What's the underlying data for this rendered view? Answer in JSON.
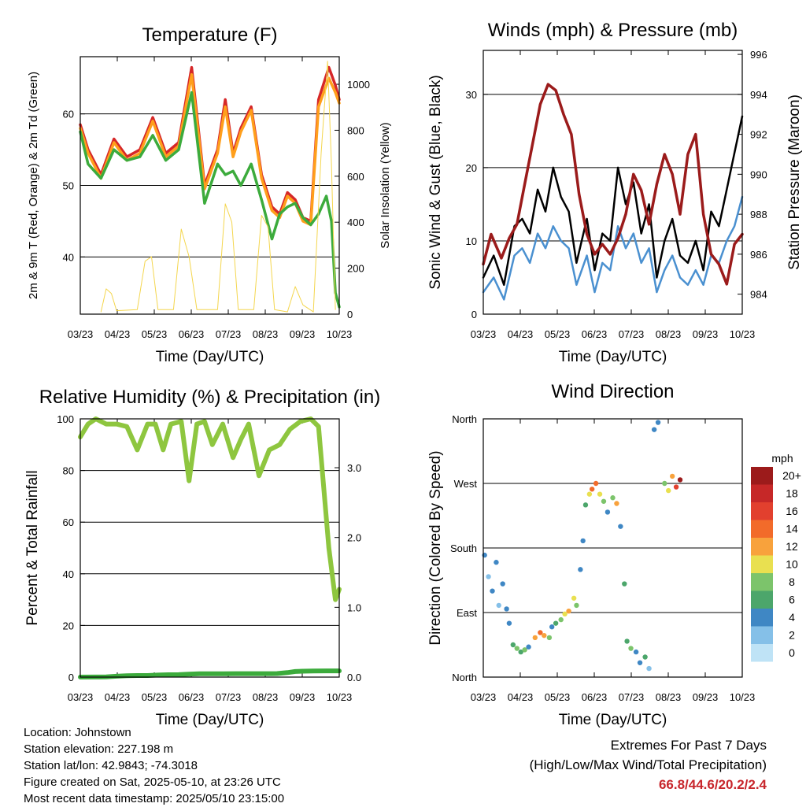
{
  "chart_data": [
    {
      "type": "line",
      "title": "Temperature (F)",
      "xlabel": "Time (Day/UTC)",
      "ylabel": "2m & 9m T (Red, Orange) & 2m Td (Green)",
      "ylabel_right": "Solar Insolation (Yellow)",
      "x_ticks": [
        "03/23",
        "04/23",
        "05/23",
        "06/23",
        "07/23",
        "08/23",
        "09/23",
        "10/23"
      ],
      "y_ticks": [
        40,
        50,
        60
      ],
      "y_right_ticks": [
        0,
        200,
        400,
        600,
        800,
        1000
      ],
      "ylim": [
        32,
        68
      ],
      "y_right_lim": [
        0,
        1120
      ],
      "grid": true,
      "series": [
        {
          "name": "2m T",
          "color": "#d62728",
          "x": [
            0,
            0.3,
            0.8,
            1.3,
            1.8,
            2.3,
            2.8,
            3.3,
            3.8,
            4.3,
            4.8,
            5.3,
            5.6,
            5.9,
            6.2,
            6.6,
            7.0,
            7.4,
            7.7,
            8.0,
            8.3,
            8.6,
            8.9,
            9.2,
            9.6,
            9.85,
            10.0
          ],
          "y": [
            58.5,
            55,
            51.5,
            56.5,
            54,
            55,
            59.5,
            54.5,
            56,
            66.5,
            50,
            55,
            62,
            54.5,
            58,
            61,
            51.5,
            47,
            46,
            49,
            48,
            45.5,
            45,
            62,
            66.5,
            64,
            62
          ]
        },
        {
          "name": "9m T",
          "color": "#ff9f1c",
          "x": [
            0,
            0.3,
            0.8,
            1.3,
            1.8,
            2.3,
            2.8,
            3.3,
            3.8,
            4.3,
            4.8,
            5.3,
            5.6,
            5.9,
            6.2,
            6.6,
            7.0,
            7.4,
            7.7,
            8.0,
            8.3,
            8.6,
            8.9,
            9.2,
            9.6,
            9.85,
            10.0
          ],
          "y": [
            58,
            54.5,
            51,
            56,
            53.5,
            54.5,
            59,
            54,
            55.5,
            65.5,
            49.5,
            54.5,
            61,
            54,
            57.5,
            60.5,
            51,
            46.5,
            45.5,
            48.5,
            47.5,
            45,
            44.5,
            61,
            65,
            63,
            61.5
          ]
        },
        {
          "name": "2m Td",
          "color": "#3cab3c",
          "x": [
            0,
            0.3,
            0.8,
            1.3,
            1.8,
            2.3,
            2.8,
            3.3,
            3.8,
            4.3,
            4.8,
            5.3,
            5.6,
            5.9,
            6.2,
            6.6,
            7.0,
            7.4,
            7.7,
            8.0,
            8.3,
            8.6,
            8.9,
            9.2,
            9.5,
            9.7,
            9.85,
            10.0
          ],
          "y": [
            57.5,
            53,
            51,
            55,
            53.5,
            54,
            57,
            53.5,
            55,
            63,
            47.5,
            53,
            51.5,
            52,
            50,
            53,
            48,
            42.5,
            46,
            47,
            47.5,
            45.5,
            44.5,
            46,
            48.5,
            45,
            35,
            33
          ]
        },
        {
          "name": "Solar Insolation",
          "color": "#f4d64e",
          "axis": "right",
          "x": [
            0.8,
            1.0,
            1.2,
            1.4,
            2.2,
            2.5,
            2.75,
            3.0,
            3.6,
            3.9,
            4.2,
            4.5,
            5.3,
            5.6,
            5.85,
            6.1,
            6.7,
            7.0,
            7.25,
            7.5,
            8.0,
            8.3,
            8.6,
            9.0,
            9.3,
            9.55,
            9.7,
            9.85
          ],
          "y": [
            10,
            110,
            90,
            15,
            20,
            230,
            250,
            20,
            20,
            370,
            250,
            20,
            20,
            480,
            400,
            20,
            20,
            430,
            380,
            20,
            10,
            120,
            40,
            10,
            700,
            1100,
            650,
            20
          ]
        }
      ]
    },
    {
      "type": "line",
      "title": "Winds (mph) & Pressure (mb)",
      "xlabel": "Time (Day/UTC)",
      "ylabel": "Sonic Wind & Gust (Blue, Black)",
      "ylabel_right": "Station Pressure (Maroon)",
      "x_ticks": [
        "03/23",
        "04/23",
        "05/23",
        "06/23",
        "07/23",
        "08/23",
        "09/23",
        "10/23"
      ],
      "y_ticks": [
        0,
        10,
        20,
        30
      ],
      "y_right_ticks": [
        984,
        986,
        988,
        990,
        992,
        994,
        996
      ],
      "ylim": [
        0,
        36
      ],
      "y_right_lim": [
        983,
        996.2
      ],
      "grid": true,
      "series": [
        {
          "name": "Sonic Wind",
          "color": "#4a90d0",
          "x": [
            0,
            0.4,
            0.8,
            1.2,
            1.5,
            1.8,
            2.1,
            2.4,
            2.7,
            3.0,
            3.3,
            3.6,
            4.0,
            4.3,
            4.6,
            4.9,
            5.2,
            5.5,
            5.8,
            6.1,
            6.4,
            6.7,
            7.0,
            7.3,
            7.6,
            7.9,
            8.2,
            8.5,
            8.8,
            9.1,
            9.4,
            9.7,
            10.0
          ],
          "y": [
            3,
            5,
            2,
            8,
            9,
            7,
            11,
            9,
            12,
            10,
            9,
            4,
            8,
            3,
            7,
            6,
            12,
            9,
            11,
            7,
            9,
            3,
            6,
            8,
            5,
            4,
            6,
            4,
            8,
            7,
            10,
            12,
            16
          ]
        },
        {
          "name": "Gust",
          "color": "#000000",
          "x": [
            0,
            0.4,
            0.8,
            1.2,
            1.5,
            1.8,
            2.1,
            2.4,
            2.7,
            3.0,
            3.3,
            3.6,
            4.0,
            4.3,
            4.6,
            4.9,
            5.2,
            5.5,
            5.8,
            6.1,
            6.4,
            6.7,
            7.0,
            7.3,
            7.6,
            7.9,
            8.2,
            8.5,
            8.8,
            9.1,
            9.4,
            9.7,
            10.0
          ],
          "y": [
            5,
            8,
            4,
            12,
            13,
            11,
            17,
            14,
            20,
            16,
            14,
            7,
            13,
            6,
            11,
            10,
            20,
            15,
            18,
            11,
            15,
            5,
            10,
            13,
            8,
            7,
            10,
            6,
            14,
            12,
            17,
            22,
            27
          ]
        },
        {
          "name": "Station Pressure",
          "color": "#9b1b1b",
          "axis": "right",
          "x": [
            0,
            0.3,
            0.7,
            1.0,
            1.3,
            1.6,
            1.9,
            2.2,
            2.5,
            2.8,
            3.1,
            3.4,
            3.7,
            4.0,
            4.3,
            4.6,
            4.9,
            5.2,
            5.5,
            5.8,
            6.1,
            6.4,
            6.7,
            7.0,
            7.3,
            7.6,
            7.9,
            8.2,
            8.5,
            8.8,
            9.1,
            9.4,
            9.7,
            10.0
          ],
          "y": [
            985.5,
            987,
            985.8,
            986.8,
            987.5,
            989.5,
            991.5,
            993.5,
            994.5,
            994.2,
            993,
            992,
            989,
            987,
            986,
            986.5,
            986,
            986.8,
            988,
            990,
            989.2,
            987.5,
            989.5,
            991,
            990,
            988,
            991,
            992,
            988,
            986,
            985.5,
            984.5,
            986.5,
            987
          ]
        }
      ]
    },
    {
      "type": "line",
      "title": "Relative Humidity (%) & Precipitation (in)",
      "xlabel": "Time (Day/UTC)",
      "ylabel": "Percent & Total Rainfall",
      "x_ticks": [
        "03/23",
        "04/23",
        "05/23",
        "06/23",
        "07/23",
        "08/23",
        "09/23",
        "10/23"
      ],
      "y_ticks": [
        0,
        20,
        40,
        60,
        80,
        100
      ],
      "y_right_ticks": [
        0.0,
        1.0,
        2.0,
        3.0
      ],
      "y_right_tick_labels": [
        "0.0",
        "1.0",
        "2.0",
        "3.0"
      ],
      "ylim": [
        0,
        100
      ],
      "y_right_lim": [
        0,
        3.7
      ],
      "grid": true,
      "series": [
        {
          "name": "Relative Humidity",
          "color": "#8ec63f",
          "x": [
            0,
            0.3,
            0.6,
            1.0,
            1.4,
            1.8,
            2.2,
            2.6,
            2.9,
            3.2,
            3.5,
            3.9,
            4.2,
            4.5,
            4.8,
            5.1,
            5.5,
            5.9,
            6.2,
            6.5,
            6.9,
            7.3,
            7.7,
            8.1,
            8.5,
            8.9,
            9.2,
            9.6,
            9.85,
            10.0
          ],
          "y": [
            93,
            98,
            100,
            98,
            98,
            97,
            88,
            98,
            98,
            88,
            98,
            99,
            76,
            98,
            99,
            90,
            98,
            85,
            92,
            98,
            78,
            88,
            90,
            96,
            99,
            100,
            97,
            50,
            30,
            34
          ]
        },
        {
          "name": "Total Rainfall",
          "color": "#3cab3c",
          "x": [
            0,
            0.6,
            1.0,
            1.4,
            1.8,
            2.2,
            2.6,
            3.0,
            3.4,
            3.8,
            4.2,
            4.6,
            5.0,
            5.5,
            6.0,
            6.5,
            7.0,
            7.4,
            7.6,
            8.0,
            8.3,
            8.6,
            9.0,
            9.5,
            10.0
          ],
          "y": [
            0,
            0.02,
            0.05,
            0.35,
            0.55,
            0.6,
            0.62,
            0.8,
            0.9,
            0.95,
            1.15,
            1.3,
            1.31,
            1.32,
            1.33,
            1.33,
            1.34,
            1.35,
            1.36,
            1.75,
            2.15,
            2.3,
            2.38,
            2.4,
            2.4
          ]
        }
      ]
    },
    {
      "type": "scatter",
      "title": "Wind Direction",
      "xlabel": "Time (Day/UTC)",
      "ylabel": "Direction (Colored By Speed)",
      "x_ticks": [
        "03/23",
        "04/23",
        "05/23",
        "06/23",
        "07/23",
        "08/23",
        "09/23",
        "10/23"
      ],
      "y_tick_labels": [
        "North",
        "East",
        "South",
        "West",
        "North"
      ],
      "y_tick_values": [
        0,
        90,
        180,
        270,
        360
      ],
      "ylim": [
        0,
        360
      ],
      "grid": true,
      "colorbar": {
        "title": "mph",
        "labels": [
          "20+",
          "18",
          "16",
          "14",
          "12",
          "10",
          "8",
          "6",
          "4",
          "2",
          "0"
        ],
        "colors": [
          "#9c1b1b",
          "#c62828",
          "#e2402e",
          "#f26b2a",
          "#f8a23c",
          "#e9e050",
          "#7cc46b",
          "#4ca66b",
          "#3f87c4",
          "#85c0e8",
          "#bfe3f6"
        ]
      },
      "points": [
        {
          "x": 0.05,
          "y": 170,
          "s": 3
        },
        {
          "x": 0.2,
          "y": 140,
          "s": 2
        },
        {
          "x": 0.35,
          "y": 120,
          "s": 3
        },
        {
          "x": 0.5,
          "y": 160,
          "s": 4
        },
        {
          "x": 0.6,
          "y": 100,
          "s": 2
        },
        {
          "x": 0.75,
          "y": 130,
          "s": 3
        },
        {
          "x": 0.9,
          "y": 95,
          "s": 4
        },
        {
          "x": 1.0,
          "y": 75,
          "s": 3
        },
        {
          "x": 1.15,
          "y": 45,
          "s": 6
        },
        {
          "x": 1.3,
          "y": 40,
          "s": 8
        },
        {
          "x": 1.45,
          "y": 35,
          "s": 5
        },
        {
          "x": 1.6,
          "y": 38,
          "s": 7
        },
        {
          "x": 1.75,
          "y": 42,
          "s": 4
        },
        {
          "x": 2.0,
          "y": 55,
          "s": 11
        },
        {
          "x": 2.2,
          "y": 62,
          "s": 13
        },
        {
          "x": 2.35,
          "y": 58,
          "s": 12
        },
        {
          "x": 2.55,
          "y": 55,
          "s": 7
        },
        {
          "x": 2.65,
          "y": 70,
          "s": 4
        },
        {
          "x": 2.8,
          "y": 75,
          "s": 6
        },
        {
          "x": 3.0,
          "y": 80,
          "s": 8
        },
        {
          "x": 3.15,
          "y": 88,
          "s": 10
        },
        {
          "x": 3.3,
          "y": 92,
          "s": 12
        },
        {
          "x": 3.5,
          "y": 110,
          "s": 10
        },
        {
          "x": 3.6,
          "y": 100,
          "s": 7
        },
        {
          "x": 3.75,
          "y": 150,
          "s": 4
        },
        {
          "x": 3.85,
          "y": 190,
          "s": 3
        },
        {
          "x": 3.95,
          "y": 240,
          "s": 6
        },
        {
          "x": 4.1,
          "y": 255,
          "s": 9
        },
        {
          "x": 4.2,
          "y": 262,
          "s": 14
        },
        {
          "x": 4.35,
          "y": 270,
          "s": 13
        },
        {
          "x": 4.5,
          "y": 255,
          "s": 10
        },
        {
          "x": 4.65,
          "y": 245,
          "s": 7
        },
        {
          "x": 4.8,
          "y": 230,
          "s": 4
        },
        {
          "x": 5.0,
          "y": 250,
          "s": 8
        },
        {
          "x": 5.15,
          "y": 242,
          "s": 11
        },
        {
          "x": 5.3,
          "y": 210,
          "s": 4
        },
        {
          "x": 5.45,
          "y": 130,
          "s": 6
        },
        {
          "x": 5.55,
          "y": 50,
          "s": 5
        },
        {
          "x": 5.7,
          "y": 40,
          "s": 8
        },
        {
          "x": 5.9,
          "y": 35,
          "s": 3
        },
        {
          "x": 6.05,
          "y": 20,
          "s": 4
        },
        {
          "x": 6.25,
          "y": 28,
          "s": 6
        },
        {
          "x": 6.4,
          "y": 12,
          "s": 2
        },
        {
          "x": 6.6,
          "y": 345,
          "s": 3
        },
        {
          "x": 6.75,
          "y": 355,
          "s": 4
        },
        {
          "x": 7.0,
          "y": 270,
          "s": 7
        },
        {
          "x": 7.15,
          "y": 260,
          "s": 10
        },
        {
          "x": 7.3,
          "y": 280,
          "s": 12
        },
        {
          "x": 7.45,
          "y": 265,
          "s": 16
        },
        {
          "x": 7.6,
          "y": 275,
          "s": 20
        }
      ]
    }
  ],
  "info": {
    "location": "Location: Johnstown",
    "elevation": "Station elevation: 227.198 m",
    "latlon": "Station lat/lon: 42.9843; -74.3018",
    "created": "Figure created on Sat, 2025-05-10, at 23:26 UTC",
    "latest": "Most recent data timestamp: 2025/05/10 23:15:00"
  },
  "extremes": {
    "title": "Extremes For Past 7 Days",
    "subtitle": "(High/Low/Max Wind/Total Precipitation)",
    "values": "66.8/44.6/20.2/2.4"
  }
}
